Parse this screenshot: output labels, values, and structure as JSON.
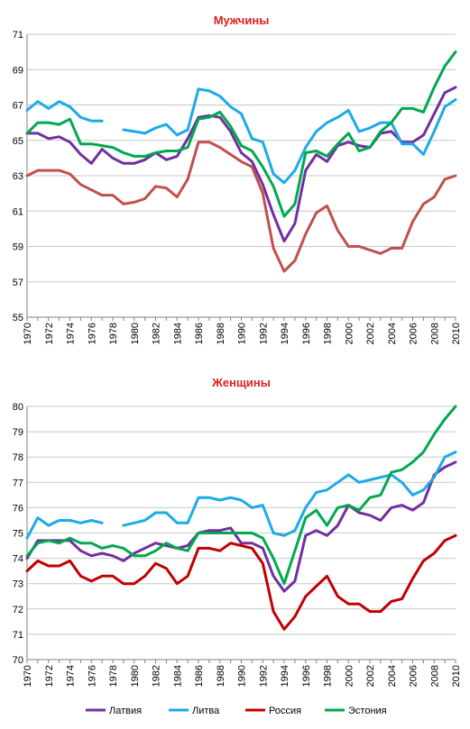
{
  "chart_data": [
    {
      "type": "line",
      "title": "Мужчины",
      "title_color": "#e02020",
      "ylim": [
        55,
        71
      ],
      "yticks": [
        55,
        57,
        59,
        61,
        63,
        65,
        67,
        69,
        71
      ],
      "xticks": [
        1970,
        1972,
        1974,
        1976,
        1978,
        1980,
        1982,
        1984,
        1986,
        1988,
        1990,
        1992,
        1994,
        1996,
        1998,
        2000,
        2002,
        2004,
        2006,
        2008,
        2010
      ],
      "x": [
        1970,
        1971,
        1972,
        1973,
        1974,
        1975,
        1976,
        1977,
        1978,
        1979,
        1980,
        1981,
        1982,
        1983,
        1984,
        1985,
        1986,
        1987,
        1988,
        1989,
        1990,
        1991,
        1992,
        1993,
        1994,
        1995,
        1996,
        1997,
        1998,
        1999,
        2000,
        2001,
        2002,
        2003,
        2004,
        2005,
        2006,
        2007,
        2008,
        2009,
        2010
      ],
      "grid": true,
      "series": [
        {
          "name": "Латвия",
          "color": "#7030a0",
          "values": [
            65.4,
            65.4,
            65.1,
            65.2,
            64.9,
            64.2,
            63.7,
            64.5,
            64.0,
            63.7,
            63.7,
            63.9,
            64.3,
            63.9,
            64.1,
            65.1,
            66.3,
            66.4,
            66.3,
            65.5,
            64.3,
            63.8,
            62.5,
            60.8,
            59.3,
            60.3,
            63.3,
            64.2,
            63.8,
            64.7,
            64.9,
            64.7,
            64.6,
            65.4,
            65.5,
            64.9,
            64.9,
            65.3,
            66.5,
            67.7,
            68.0
          ]
        },
        {
          "name": "Литва",
          "color": "#1caae8",
          "values": [
            66.7,
            67.2,
            66.8,
            67.2,
            66.9,
            66.3,
            66.1,
            66.1,
            null,
            65.6,
            65.5,
            65.4,
            65.7,
            65.9,
            65.3,
            65.6,
            67.9,
            67.8,
            67.5,
            66.9,
            66.5,
            65.1,
            64.9,
            63.1,
            62.6,
            63.3,
            64.6,
            65.5,
            66.0,
            66.3,
            66.7,
            65.5,
            65.7,
            66.0,
            66.0,
            64.8,
            64.8,
            64.2,
            65.5,
            66.9,
            67.3
          ]
        },
        {
          "name": "Россия",
          "color": "#c0504d",
          "values": [
            63.0,
            63.3,
            63.3,
            63.3,
            63.1,
            62.5,
            62.2,
            61.9,
            61.9,
            61.4,
            61.5,
            61.7,
            62.4,
            62.3,
            61.8,
            62.8,
            64.9,
            64.9,
            64.6,
            64.2,
            63.8,
            63.5,
            62.0,
            58.9,
            57.6,
            58.2,
            59.7,
            60.9,
            61.3,
            59.9,
            59.0,
            59.0,
            58.8,
            58.6,
            58.9,
            58.9,
            60.4,
            61.4,
            61.8,
            62.8,
            63.0
          ]
        },
        {
          "name": "Эстония",
          "color": "#00a84f",
          "values": [
            65.4,
            66.0,
            66.0,
            65.9,
            66.2,
            64.8,
            64.8,
            64.7,
            64.6,
            64.3,
            64.1,
            64.1,
            64.3,
            64.4,
            64.4,
            64.6,
            66.2,
            66.3,
            66.6,
            65.8,
            64.7,
            64.4,
            63.5,
            62.4,
            60.7,
            61.4,
            64.3,
            64.4,
            64.1,
            64.8,
            65.4,
            64.4,
            64.6,
            65.5,
            66.0,
            66.8,
            66.8,
            66.6,
            68.0,
            69.2,
            70.0
          ]
        }
      ]
    },
    {
      "type": "line",
      "title": "Женщины",
      "title_color": "#e02020",
      "ylim": [
        70,
        80
      ],
      "yticks": [
        70,
        71,
        72,
        73,
        74,
        75,
        76,
        77,
        78,
        79,
        80
      ],
      "xticks": [
        1970,
        1972,
        1974,
        1976,
        1978,
        1980,
        1982,
        1984,
        1986,
        1988,
        1990,
        1992,
        1994,
        1996,
        1998,
        2000,
        2002,
        2004,
        2006,
        2008,
        2010
      ],
      "x": [
        1970,
        1971,
        1972,
        1973,
        1974,
        1975,
        1976,
        1977,
        1978,
        1979,
        1980,
        1981,
        1982,
        1983,
        1984,
        1985,
        1986,
        1987,
        1988,
        1989,
        1990,
        1991,
        1992,
        1993,
        1994,
        1995,
        1996,
        1997,
        1998,
        1999,
        2000,
        2001,
        2002,
        2003,
        2004,
        2005,
        2006,
        2007,
        2008,
        2009,
        2010
      ],
      "grid": true,
      "legend_position": "bottom",
      "series": [
        {
          "name": "Латвия",
          "color": "#7030a0",
          "values": [
            74.0,
            74.7,
            74.7,
            74.7,
            74.7,
            74.3,
            74.1,
            74.2,
            74.1,
            73.9,
            74.2,
            74.4,
            74.6,
            74.5,
            74.4,
            74.5,
            75.0,
            75.1,
            75.1,
            75.2,
            74.6,
            74.6,
            74.4,
            73.3,
            72.7,
            73.1,
            74.9,
            75.1,
            74.9,
            75.3,
            76.1,
            75.8,
            75.7,
            75.5,
            76.0,
            76.1,
            75.9,
            76.2,
            77.3,
            77.6,
            77.8
          ]
        },
        {
          "name": "Литва",
          "color": "#1caae8",
          "values": [
            74.8,
            75.6,
            75.3,
            75.5,
            75.5,
            75.4,
            75.5,
            75.4,
            null,
            75.3,
            75.4,
            75.5,
            75.8,
            75.8,
            75.4,
            75.4,
            76.4,
            76.4,
            76.3,
            76.4,
            76.3,
            76.0,
            76.1,
            75.0,
            74.9,
            75.1,
            76.0,
            76.6,
            76.7,
            77.0,
            77.3,
            77.0,
            77.1,
            77.2,
            77.3,
            77.0,
            76.5,
            76.7,
            77.2,
            78.0,
            78.2
          ]
        },
        {
          "name": "Россия",
          "color": "#c00000",
          "values": [
            73.5,
            73.9,
            73.7,
            73.7,
            73.9,
            73.3,
            73.1,
            73.3,
            73.3,
            73.0,
            73.0,
            73.3,
            73.8,
            73.6,
            73.0,
            73.3,
            74.4,
            74.4,
            74.3,
            74.6,
            74.5,
            74.4,
            73.8,
            71.9,
            71.2,
            71.7,
            72.5,
            72.9,
            73.3,
            72.5,
            72.2,
            72.2,
            71.9,
            71.9,
            72.3,
            72.4,
            73.2,
            73.9,
            74.2,
            74.7,
            74.9
          ]
        },
        {
          "name": "Эстония",
          "color": "#00a84f",
          "values": [
            74.1,
            74.6,
            74.7,
            74.6,
            74.8,
            74.6,
            74.6,
            74.4,
            74.5,
            74.4,
            74.1,
            74.1,
            74.3,
            74.6,
            74.4,
            74.3,
            75.0,
            75.0,
            75.0,
            75.0,
            75.0,
            75.0,
            74.8,
            74.0,
            73.0,
            74.3,
            75.6,
            75.9,
            75.3,
            76.0,
            76.1,
            75.9,
            76.4,
            76.5,
            77.4,
            77.5,
            77.8,
            78.2,
            78.9,
            79.5,
            80.0
          ]
        }
      ]
    }
  ]
}
